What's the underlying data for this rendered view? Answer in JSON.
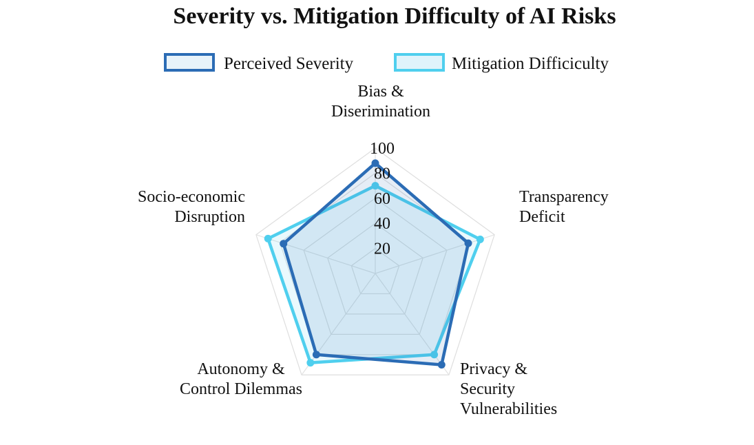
{
  "chart_data": {
    "type": "radar",
    "title": "Severity vs. Mitigation Difficulty of AI Risks",
    "axes": [
      [
        "Bias &",
        "Diserimination"
      ],
      [
        "Transparency",
        "Deficit"
      ],
      [
        "Privacy &",
        "Security",
        "Vulnerabilities"
      ],
      [
        "Autonomy &",
        "Control Dilemmas"
      ],
      [
        "Socio-economic",
        "Disruption"
      ]
    ],
    "rlim": [
      0,
      100
    ],
    "ticks": [
      "20",
      "40",
      "60",
      "80",
      "100"
    ],
    "tick_values": [
      20,
      40,
      60,
      80,
      100
    ],
    "grid": true,
    "legend_position": "top",
    "series": [
      {
        "name": "Perceived Severity",
        "values": [
          88,
          78,
          90,
          80,
          77
        ],
        "color": "#2b6cb5",
        "fill": "#e8f3fa"
      },
      {
        "name": "Mitigation Difficiculty",
        "values": [
          70,
          88,
          80,
          88,
          90
        ],
        "color": "#4fcfee",
        "fill": "#dff3fb"
      }
    ]
  }
}
